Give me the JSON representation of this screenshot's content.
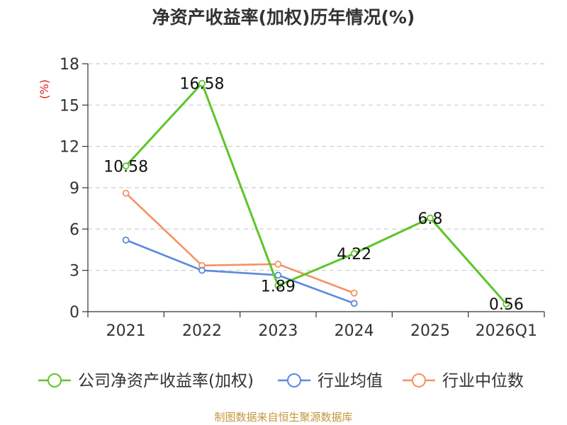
{
  "chart_data": {
    "type": "line",
    "title": "净资产收益率(加权)历年情况(%)",
    "ylabel": "(%)",
    "xlabel": "",
    "categories": [
      "2021",
      "2022",
      "2023",
      "2024",
      "2025",
      "2026Q1"
    ],
    "ylim": [
      0,
      18
    ],
    "yticks": [
      0,
      3,
      6,
      9,
      12,
      15,
      18
    ],
    "grid": true,
    "legend_position": "bottom",
    "series": [
      {
        "name": "公司净资产收益率(加权)",
        "values": [
          10.58,
          16.58,
          1.89,
          4.22,
          6.8,
          0.56
        ],
        "color": "#5dc528",
        "labels": [
          "10.58",
          "16.58",
          "1.89",
          "4.22",
          "6.8",
          "0.56"
        ]
      },
      {
        "name": "行业均值",
        "values": [
          5.2,
          3.0,
          2.65,
          0.6,
          null,
          null
        ],
        "color": "#5a89e0"
      },
      {
        "name": "行业中位数",
        "values": [
          8.6,
          3.35,
          3.45,
          1.35,
          null,
          null
        ],
        "color": "#f59264"
      }
    ],
    "source": "制图数据来自恒生聚源数据库"
  },
  "colors": {
    "axis": "#333333",
    "grid": "#cccccc",
    "unit": "#e02020",
    "source": "#c4963c"
  }
}
